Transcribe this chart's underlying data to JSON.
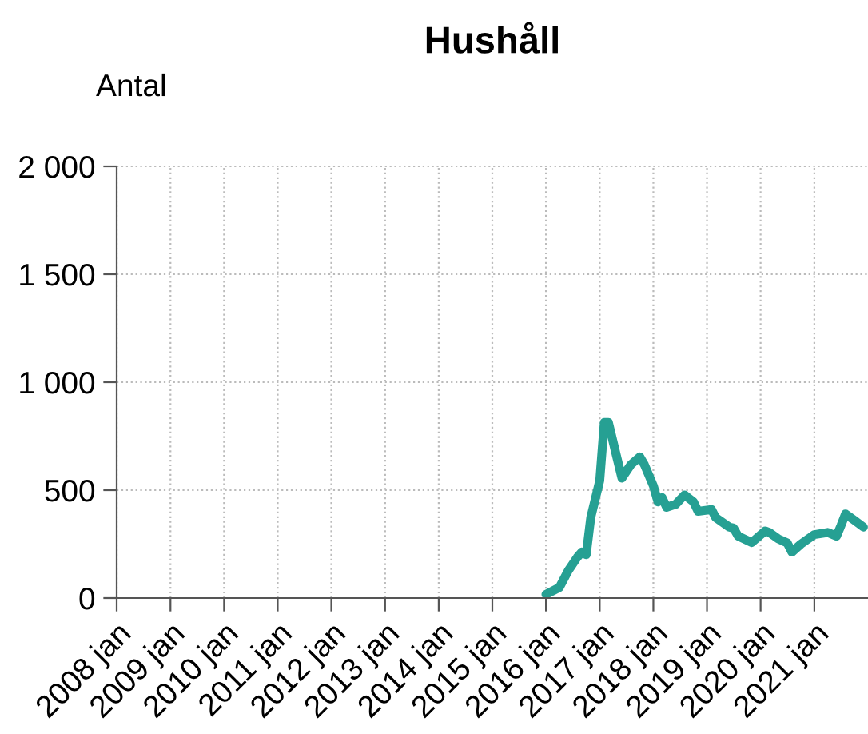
{
  "chart_data": {
    "type": "line",
    "title": "Hushåll",
    "ylabel": "Antal",
    "x": [
      "2016-01",
      "2016-04",
      "2016-06",
      "2016-08",
      "2016-09",
      "2016-10",
      "2016-11",
      "2017-01",
      "2017-02",
      "2017-03",
      "2017-05",
      "2017-06",
      "2017-08",
      "2017-10",
      "2017-11",
      "2018-01",
      "2018-02",
      "2018-03",
      "2018-04",
      "2018-06",
      "2018-08",
      "2018-10",
      "2018-11",
      "2019-02",
      "2019-03",
      "2019-06",
      "2019-07",
      "2019-08",
      "2019-11",
      "2020-02",
      "2020-03",
      "2020-05",
      "2020-07",
      "2020-08",
      "2020-10",
      "2021-01",
      "2021-04",
      "2021-06",
      "2021-07",
      "2021-08",
      "2021-10",
      "2021-12"
    ],
    "series": [
      {
        "color": "#26a093",
        "values": [
          17,
          49,
          127,
          189,
          213,
          201,
          373,
          544,
          814,
          814,
          642,
          556,
          618,
          654,
          618,
          520,
          446,
          466,
          421,
          434,
          478,
          446,
          402,
          410,
          373,
          329,
          324,
          287,
          257,
          311,
          304,
          274,
          255,
          213,
          250,
          294,
          304,
          287,
          336,
          390,
          360,
          329
        ]
      }
    ],
    "xlim": [
      "2008-01",
      "2022-01"
    ],
    "xticks": [
      {
        "value": "2008-01",
        "label": "2008 jan"
      },
      {
        "value": "2009-01",
        "label": "2009 jan"
      },
      {
        "value": "2010-01",
        "label": "2010 jan"
      },
      {
        "value": "2011-01",
        "label": "2011 jan"
      },
      {
        "value": "2012-01",
        "label": "2012 jan"
      },
      {
        "value": "2013-01",
        "label": "2013 jan"
      },
      {
        "value": "2014-01",
        "label": "2014 jan"
      },
      {
        "value": "2015-01",
        "label": "2015 jan"
      },
      {
        "value": "2016-01",
        "label": "2016 jan"
      },
      {
        "value": "2017-01",
        "label": "2017 jan"
      },
      {
        "value": "2018-01",
        "label": "2018 jan"
      },
      {
        "value": "2019-01",
        "label": "2019 jan"
      },
      {
        "value": "2020-01",
        "label": "2020 jan"
      },
      {
        "value": "2021-01",
        "label": "2021 jan"
      }
    ],
    "ylim": [
      0,
      2000
    ],
    "yticks": [
      0,
      500,
      {
        "value": 1000,
        "label": "1 000"
      },
      {
        "value": 1500,
        "label": "1 500"
      },
      {
        "value": 2000,
        "label": "2 000"
      }
    ],
    "grid": true,
    "marker": "none",
    "line_style": "solid"
  }
}
